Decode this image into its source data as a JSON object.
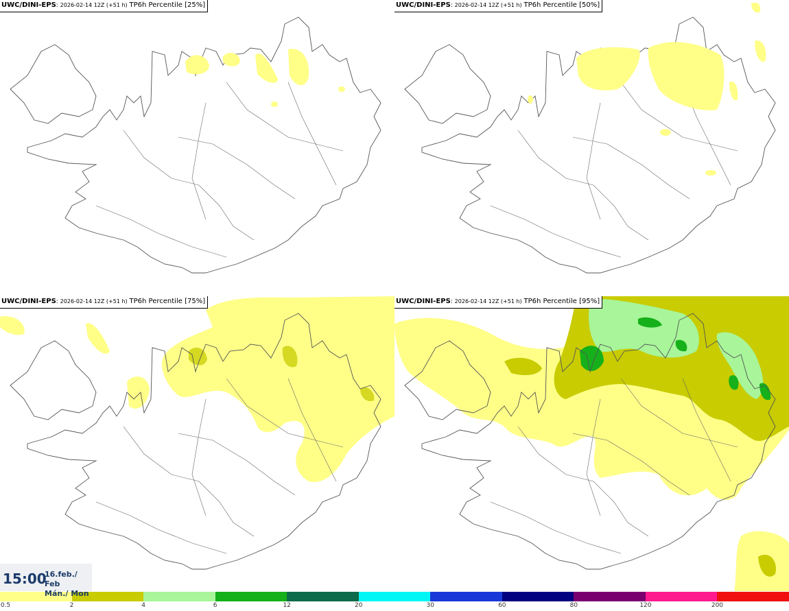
{
  "panels": [
    {
      "model": "UWC/DINI-EPS",
      "run": "2026-02-14 12Z (+51 h)",
      "param": "TP6h Percentile [25%]"
    },
    {
      "model": "UWC/DINI-EPS",
      "run": "2026-02-14 12Z (+51 h)",
      "param": "TP6h Percentile [50%]"
    },
    {
      "model": "UWC/DINI-EPS",
      "run": "2026-02-14 12Z (+51 h)",
      "param": "TP6h Percentile [75%]"
    },
    {
      "model": "UWC/DINI-EPS",
      "run": "2026-02-14 12Z (+51 h)",
      "param": "TP6h Percentile [95%]"
    }
  ],
  "valid_time": {
    "time": "15:00",
    "date_line1": "16.feb./ Feb",
    "date_line2": "Mán./ Mon"
  },
  "legend": {
    "colors": [
      "#ffff88",
      "#c8cc00",
      "#a8f59a",
      "#15b01a",
      "#0b6b4a",
      "#00f5f5",
      "#1838d8",
      "#000080",
      "#7a0070",
      "#ff1a90",
      "#f01010"
    ],
    "thresholds": [
      "0.5",
      "2",
      "4",
      "6",
      "12",
      "20",
      "30",
      "60",
      "80",
      "120",
      "200"
    ]
  },
  "palette": {
    "land_outline": "#555555",
    "light_yellow": "#ffff88",
    "olive": "#c8cc00",
    "light_green": "#a8f59a",
    "green": "#15b01a"
  }
}
